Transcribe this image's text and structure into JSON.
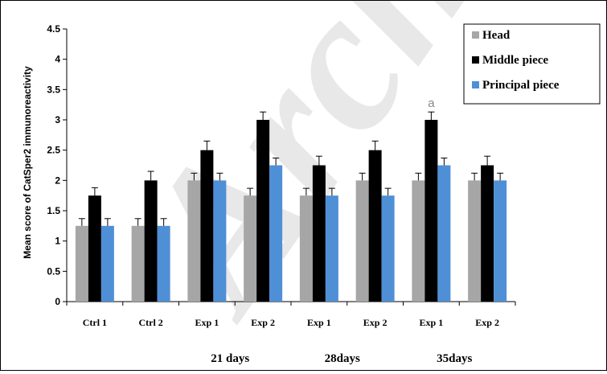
{
  "chart_data": {
    "type": "bar",
    "ylabel": "Mean score of CatSper2 immunoreactivity",
    "ylim": [
      0,
      4.5
    ],
    "yticks": [
      "0",
      "0.5",
      "1",
      "1.5",
      "2",
      "2.5",
      "3",
      "3.5",
      "4",
      "4.5"
    ],
    "categories": [
      "Ctrl 1",
      "Ctrl 2",
      "Exp 1",
      "Exp 2",
      "Exp 1",
      "Exp 2",
      "Exp 1",
      "Exp 2"
    ],
    "groups": [
      "21 days",
      "28days",
      "35days"
    ],
    "series": [
      {
        "name": "Head",
        "color": "#a6a6a6",
        "values": [
          1.25,
          1.25,
          2.0,
          1.75,
          1.75,
          2.0,
          2.0,
          2.0
        ],
        "errors": [
          0.12,
          0.12,
          0.12,
          0.12,
          0.12,
          0.12,
          0.12,
          0.12
        ]
      },
      {
        "name": "Middle piece",
        "color": "#000000",
        "values": [
          1.75,
          2.0,
          2.5,
          3.0,
          2.25,
          2.5,
          3.0,
          2.25
        ],
        "errors": [
          0.13,
          0.15,
          0.15,
          0.13,
          0.15,
          0.15,
          0.13,
          0.15
        ]
      },
      {
        "name": "Principal piece",
        "color": "#4f8fd6",
        "values": [
          1.25,
          1.25,
          2.0,
          2.25,
          1.75,
          1.75,
          2.25,
          2.0
        ],
        "errors": [
          0.12,
          0.12,
          0.12,
          0.12,
          0.12,
          0.12,
          0.12,
          0.12
        ]
      }
    ],
    "annotations": [
      {
        "text": "a",
        "category_index": 6,
        "series": "Middle piece"
      }
    ],
    "grid": false,
    "legend": "top-right"
  }
}
